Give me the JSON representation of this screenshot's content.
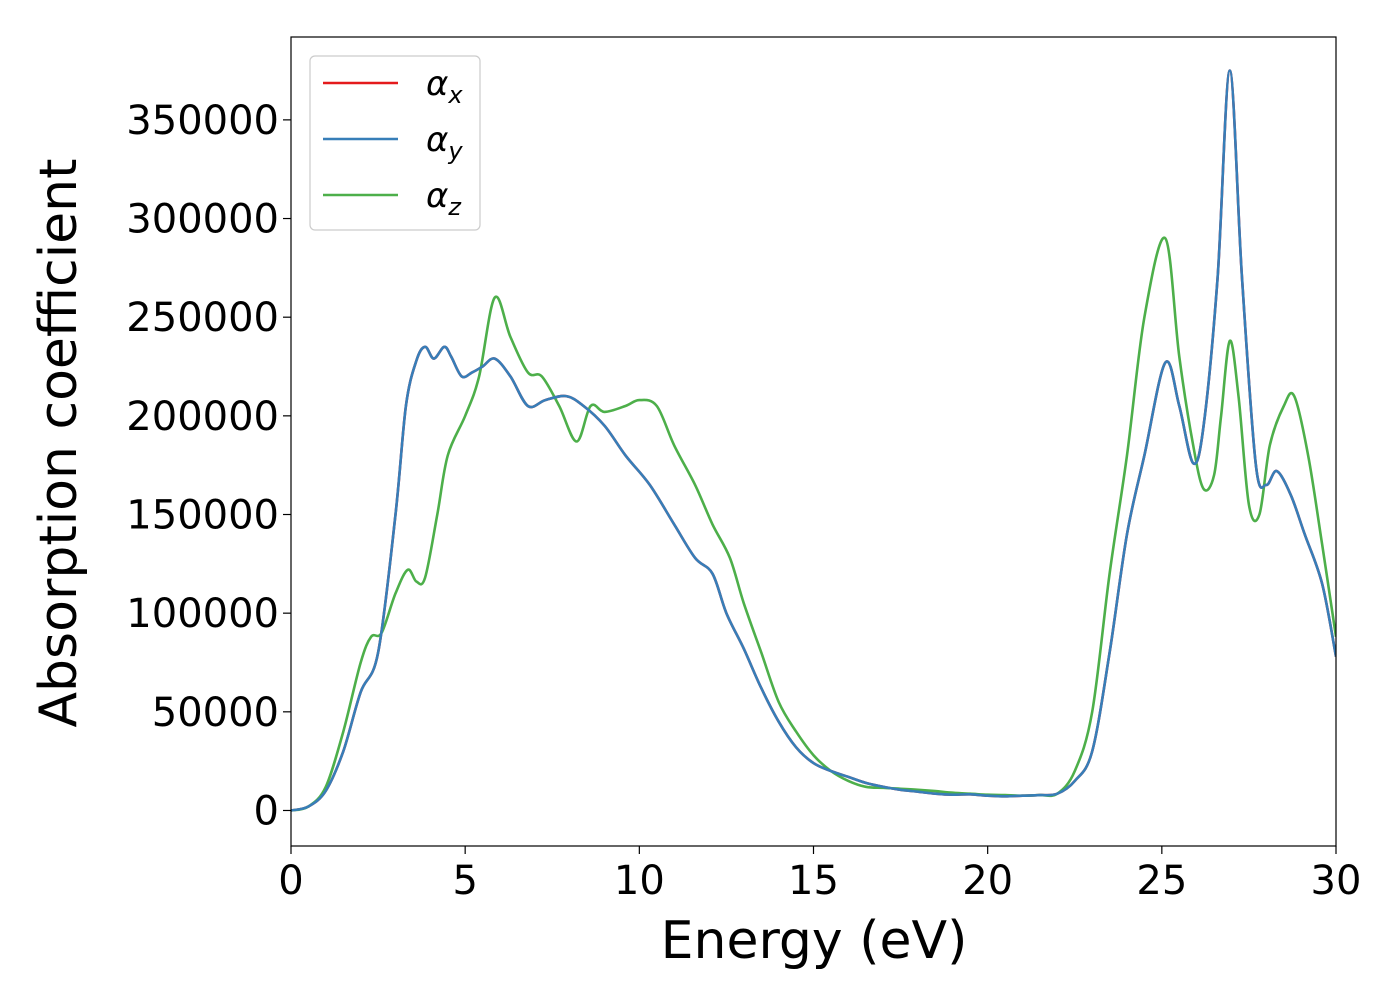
{
  "chart_data": {
    "type": "line",
    "title": "",
    "xlabel": "Energy (eV)",
    "ylabel": "Absorption coefficient",
    "xlim": [
      0,
      30
    ],
    "ylim": [
      -18000,
      392000
    ],
    "xticks": [
      0,
      5,
      10,
      15,
      20,
      25,
      30
    ],
    "yticks": [
      0,
      50000,
      100000,
      150000,
      200000,
      250000,
      300000,
      350000
    ],
    "grid": false,
    "legend_position": "top-left",
    "series": [
      {
        "name": "αx",
        "legend_symbol": "α",
        "legend_sub": "x",
        "color": "#e41a1c",
        "x": [
          0,
          0.5,
          1,
          1.5,
          2,
          2.5,
          3,
          3.3,
          3.6,
          3.85,
          4.1,
          4.4,
          4.6,
          4.9,
          5.2,
          5.5,
          5.85,
          6.3,
          6.8,
          7.3,
          7.9,
          8.4,
          9.0,
          9.6,
          10.3,
          11.0,
          11.6,
          12.1,
          12.5,
          13.0,
          13.5,
          14.0,
          14.5,
          15.0,
          15.5,
          16.0,
          16.5,
          17.0,
          17.5,
          18.0,
          18.5,
          19.0,
          19.5,
          20.0,
          20.5,
          21.0,
          21.5,
          22.0,
          22.5,
          23.0,
          23.5,
          24.0,
          24.5,
          25.1,
          25.5,
          25.9,
          26.2,
          26.6,
          26.95,
          27.3,
          27.7,
          28.0,
          28.3,
          28.7,
          29.1,
          29.6,
          30.0
        ],
        "values": [
          0,
          2000,
          10000,
          30000,
          60000,
          80000,
          150000,
          205000,
          228000,
          235000,
          229000,
          235000,
          230000,
          220000,
          222000,
          225000,
          229000,
          220000,
          205000,
          208000,
          210000,
          205000,
          195000,
          180000,
          165000,
          145000,
          128000,
          120000,
          100000,
          82000,
          62000,
          45000,
          32000,
          24000,
          20000,
          17000,
          14000,
          12000,
          10500,
          9500,
          8500,
          8000,
          8200,
          7500,
          7200,
          7500,
          7800,
          8500,
          15000,
          30000,
          80000,
          140000,
          180000,
          227000,
          205000,
          176000,
          195000,
          270000,
          375000,
          270000,
          175000,
          165000,
          172000,
          160000,
          140000,
          115000,
          78000
        ]
      },
      {
        "name": "αy",
        "legend_symbol": "α",
        "legend_sub": "y",
        "color": "#377eb8",
        "x": [
          0,
          0.5,
          1,
          1.5,
          2,
          2.5,
          3,
          3.3,
          3.6,
          3.85,
          4.1,
          4.4,
          4.6,
          4.9,
          5.2,
          5.5,
          5.85,
          6.3,
          6.8,
          7.3,
          7.9,
          8.4,
          9.0,
          9.6,
          10.3,
          11.0,
          11.6,
          12.1,
          12.5,
          13.0,
          13.5,
          14.0,
          14.5,
          15.0,
          15.5,
          16.0,
          16.5,
          17.0,
          17.5,
          18.0,
          18.5,
          19.0,
          19.5,
          20.0,
          20.5,
          21.0,
          21.5,
          22.0,
          22.5,
          23.0,
          23.5,
          24.0,
          24.5,
          25.1,
          25.5,
          25.9,
          26.2,
          26.6,
          26.95,
          27.3,
          27.7,
          28.0,
          28.3,
          28.7,
          29.1,
          29.6,
          30.0
        ],
        "values": [
          0,
          2000,
          10000,
          30000,
          60000,
          80000,
          150000,
          205000,
          228000,
          235000,
          229000,
          235000,
          230000,
          220000,
          222000,
          225000,
          229000,
          220000,
          205000,
          208000,
          210000,
          205000,
          195000,
          180000,
          165000,
          145000,
          128000,
          120000,
          100000,
          82000,
          62000,
          45000,
          32000,
          24000,
          20000,
          17000,
          14000,
          12000,
          10500,
          9500,
          8500,
          8000,
          8200,
          7500,
          7200,
          7500,
          7800,
          8500,
          15000,
          30000,
          80000,
          140000,
          180000,
          227000,
          205000,
          176000,
          195000,
          270000,
          375000,
          270000,
          175000,
          165000,
          172000,
          160000,
          140000,
          115000,
          78000
        ]
      },
      {
        "name": "αz",
        "legend_symbol": "α",
        "legend_sub": "z",
        "color": "#4daf4a",
        "x": [
          0,
          0.5,
          1,
          1.5,
          2,
          2.3,
          2.6,
          3.0,
          3.35,
          3.6,
          3.85,
          4.2,
          4.5,
          5.0,
          5.4,
          5.85,
          6.3,
          6.8,
          7.2,
          7.7,
          8.2,
          8.6,
          9.0,
          9.6,
          10.0,
          10.5,
          11.0,
          11.6,
          12.1,
          12.6,
          13.0,
          13.5,
          14.0,
          14.5,
          15.0,
          15.5,
          16.0,
          16.5,
          17.0,
          17.5,
          18.0,
          18.5,
          19.0,
          19.5,
          20.0,
          20.5,
          21.0,
          21.5,
          22.0,
          22.5,
          23.0,
          23.5,
          24.0,
          24.5,
          25.1,
          25.5,
          25.9,
          26.2,
          26.5,
          26.7,
          26.95,
          27.2,
          27.5,
          27.8,
          28.1,
          28.5,
          28.8,
          29.2,
          29.6,
          30.0
        ],
        "values": [
          0,
          2000,
          12000,
          40000,
          75000,
          88000,
          90000,
          110000,
          122000,
          116000,
          118000,
          150000,
          180000,
          200000,
          220000,
          260000,
          240000,
          222000,
          220000,
          205000,
          187000,
          205000,
          202000,
          205000,
          208000,
          205000,
          185000,
          165000,
          145000,
          128000,
          105000,
          80000,
          55000,
          40000,
          28000,
          20000,
          15000,
          12000,
          11500,
          11000,
          10500,
          9800,
          9000,
          8500,
          8000,
          7800,
          7500,
          7800,
          8500,
          20000,
          50000,
          120000,
          180000,
          250000,
          290000,
          230000,
          185000,
          163000,
          170000,
          200000,
          238000,
          210000,
          155000,
          150000,
          185000,
          205000,
          210000,
          180000,
          135000,
          88000
        ]
      }
    ]
  }
}
